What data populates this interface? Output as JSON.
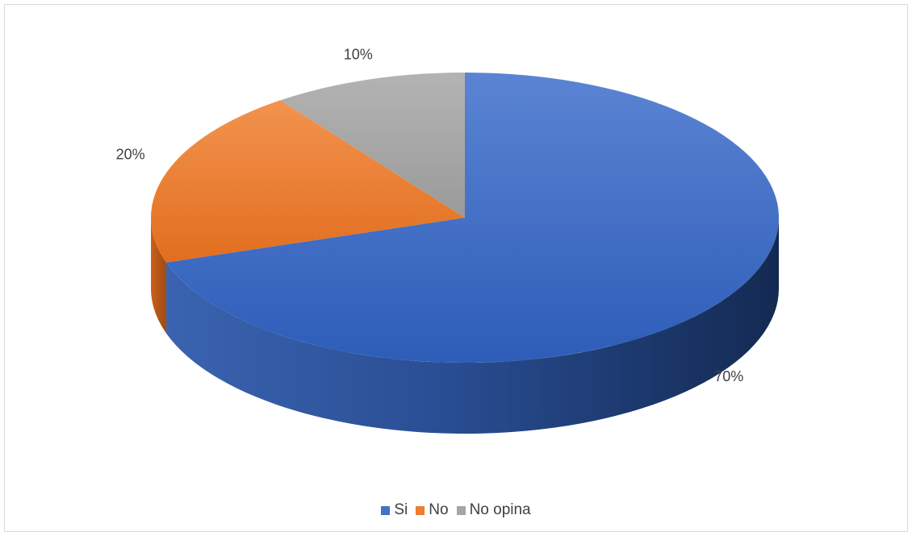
{
  "chart_data": {
    "type": "pie",
    "style": "3d",
    "categories": [
      "Si",
      "No",
      "No opina"
    ],
    "values": [
      70,
      20,
      10
    ],
    "labels": [
      "70%",
      "20%",
      "10%"
    ],
    "colors": [
      "#4472c4",
      "#ed7d31",
      "#a5a5a5"
    ],
    "legend_position": "bottom",
    "title": ""
  }
}
